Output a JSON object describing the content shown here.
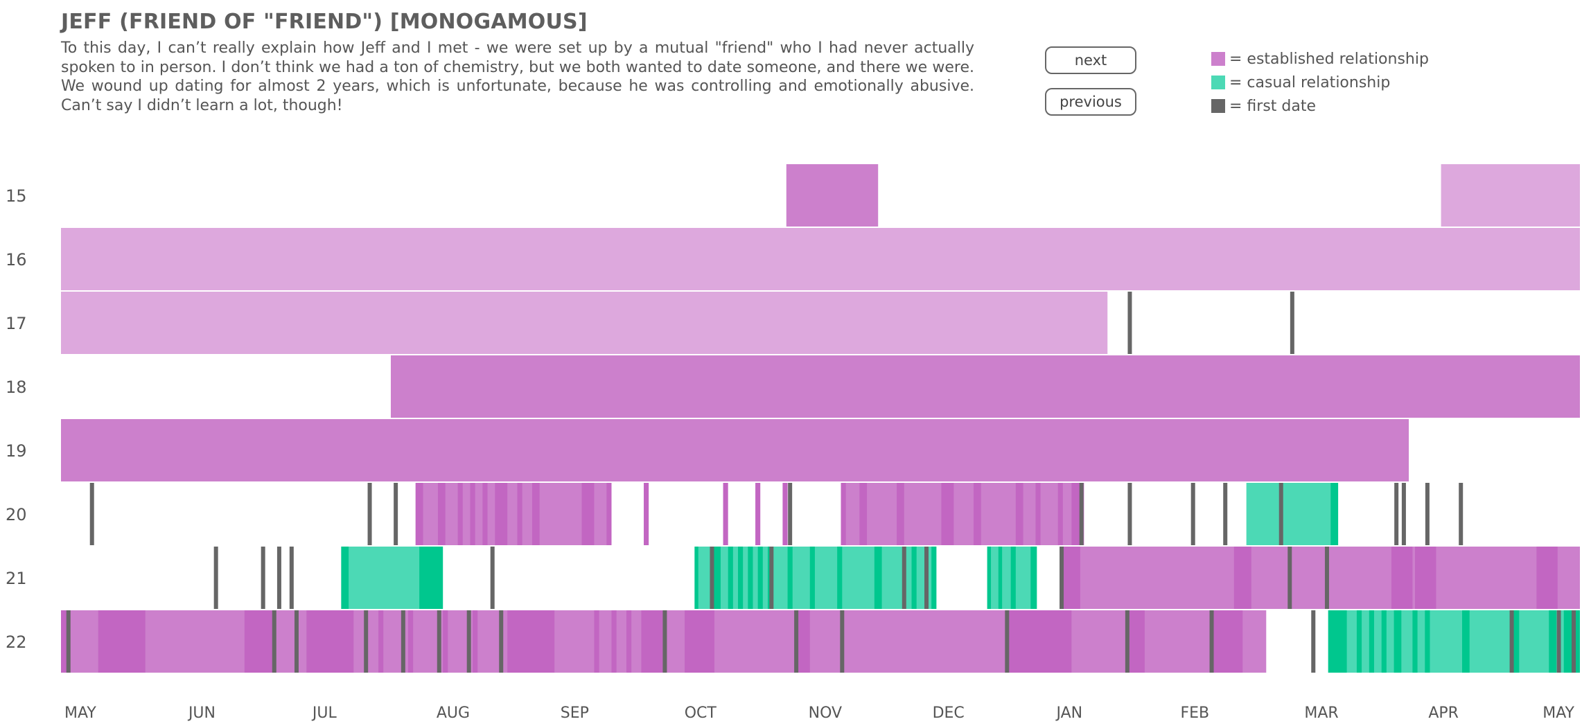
{
  "header": {
    "title": "JEFF (FRIEND OF \"FRIEND\") [MONOGAMOUS]",
    "description": "To this day, I can’t really explain how Jeff and I met - we were set up by a mutual \"friend\" who I had never actually spoken to in person. I don’t think we had a ton of chemistry, but we both wanted to date someone, and there we were. We wound up dating for almost 2 years, which is unfortunate, because he was controlling and emotionally abusive. Can’t say I didn’t learn a lot, though!"
  },
  "buttons": {
    "next_label": "next",
    "previous_label": "previous"
  },
  "legend": [
    {
      "label": "= established relationship",
      "color": "#cc80cc"
    },
    {
      "label": "= casual relationship",
      "color": "#4cd9b5"
    },
    {
      "label": "= first date",
      "color": "#666666"
    }
  ],
  "colors": {
    "established": "#cc80cc",
    "established_dark": "#c266c2",
    "established_light": "#dda8dd",
    "casual": "#4cd9b5",
    "casual_dark": "#00c78e",
    "first_date": "#666666"
  },
  "chart_data": {
    "type": "timeline",
    "title": "JEFF (FRIEND OF \"FRIEND\") [MONOGAMOUS]",
    "xlabel": "",
    "ylabel": "",
    "x_unit": "months since start of May",
    "x_range": [
      0,
      12.25
    ],
    "x_ticks": [
      "MAY",
      "JUN",
      "JUL",
      "AUG",
      "SEP",
      "OCT",
      "NOV",
      "DEC",
      "JAN",
      "FEB",
      "MAR",
      "APR",
      "MAY"
    ],
    "rows": [
      {
        "label": "15",
        "segments": [
          {
            "start": 5.85,
            "end": 6.59,
            "kind": "established"
          },
          {
            "start": 11.13,
            "end": 12.25,
            "kind": "established_light"
          }
        ],
        "first_dates": []
      },
      {
        "label": "16",
        "segments": [
          {
            "start": 0,
            "end": 12.25,
            "kind": "established_light"
          }
        ],
        "first_dates": []
      },
      {
        "label": "17",
        "segments": [
          {
            "start": 0,
            "end": 8.44,
            "kind": "established_light"
          }
        ],
        "first_dates": [
          8.62,
          9.93
        ]
      },
      {
        "label": "18",
        "segments": [
          {
            "start": 2.66,
            "end": 12.25,
            "kind": "established"
          }
        ],
        "first_dates": []
      },
      {
        "label": "19",
        "segments": [
          {
            "start": 0,
            "end": 10.87,
            "kind": "established"
          }
        ],
        "first_dates": []
      },
      {
        "label": "20",
        "segments": [
          {
            "start": 2.86,
            "end": 4.44,
            "kind": "established"
          },
          {
            "start": 2.86,
            "end": 2.92,
            "kind": "established_dark"
          },
          {
            "start": 3.04,
            "end": 3.1,
            "kind": "established_dark"
          },
          {
            "start": 3.2,
            "end": 3.24,
            "kind": "established_dark"
          },
          {
            "start": 3.3,
            "end": 3.34,
            "kind": "established_dark"
          },
          {
            "start": 3.4,
            "end": 3.44,
            "kind": "established_dark"
          },
          {
            "start": 3.5,
            "end": 3.6,
            "kind": "established_dark"
          },
          {
            "start": 3.68,
            "end": 3.72,
            "kind": "established_dark"
          },
          {
            "start": 3.8,
            "end": 3.86,
            "kind": "established_dark"
          },
          {
            "start": 4.2,
            "end": 4.3,
            "kind": "established_dark"
          },
          {
            "start": 4.4,
            "end": 4.44,
            "kind": "established_dark"
          },
          {
            "start": 4.7,
            "end": 4.74,
            "kind": "established_dark"
          },
          {
            "start": 5.34,
            "end": 5.38,
            "kind": "established_dark"
          },
          {
            "start": 5.6,
            "end": 5.64,
            "kind": "established_dark"
          },
          {
            "start": 5.82,
            "end": 5.86,
            "kind": "established_dark"
          },
          {
            "start": 6.29,
            "end": 8.25,
            "kind": "established"
          },
          {
            "start": 6.29,
            "end": 6.33,
            "kind": "established_dark"
          },
          {
            "start": 6.44,
            "end": 6.5,
            "kind": "established_dark"
          },
          {
            "start": 6.74,
            "end": 6.8,
            "kind": "established_dark"
          },
          {
            "start": 7.1,
            "end": 7.2,
            "kind": "established_dark"
          },
          {
            "start": 7.36,
            "end": 7.42,
            "kind": "established_dark"
          },
          {
            "start": 7.7,
            "end": 7.76,
            "kind": "established_dark"
          },
          {
            "start": 7.86,
            "end": 7.9,
            "kind": "established_dark"
          },
          {
            "start": 8.04,
            "end": 8.08,
            "kind": "established_dark"
          },
          {
            "start": 8.15,
            "end": 8.25,
            "kind": "established_dark"
          },
          {
            "start": 9.56,
            "end": 10.3,
            "kind": "casual"
          },
          {
            "start": 10.24,
            "end": 10.3,
            "kind": "casual_dark"
          }
        ],
        "first_dates": [
          0.25,
          2.49,
          2.7,
          5.88,
          8.23,
          8.62,
          9.13,
          9.39,
          9.84,
          10.77,
          10.83,
          11.02,
          11.29
        ]
      },
      {
        "label": "21",
        "segments": [
          {
            "start": 2.26,
            "end": 3.08,
            "kind": "casual"
          },
          {
            "start": 2.26,
            "end": 2.32,
            "kind": "casual_dark"
          },
          {
            "start": 2.89,
            "end": 3.08,
            "kind": "casual_dark"
          },
          {
            "start": 5.11,
            "end": 7.06,
            "kind": "casual"
          },
          {
            "start": 5.11,
            "end": 5.14,
            "kind": "casual_dark"
          },
          {
            "start": 5.26,
            "end": 5.32,
            "kind": "casual_dark"
          },
          {
            "start": 5.38,
            "end": 5.42,
            "kind": "casual_dark"
          },
          {
            "start": 5.46,
            "end": 5.5,
            "kind": "casual_dark"
          },
          {
            "start": 5.54,
            "end": 5.58,
            "kind": "casual_dark"
          },
          {
            "start": 5.62,
            "end": 5.66,
            "kind": "casual_dark"
          },
          {
            "start": 5.7,
            "end": 5.74,
            "kind": "casual_dark"
          },
          {
            "start": 5.86,
            "end": 5.9,
            "kind": "casual_dark"
          },
          {
            "start": 6.04,
            "end": 6.08,
            "kind": "casual_dark"
          },
          {
            "start": 6.26,
            "end": 6.3,
            "kind": "casual_dark"
          },
          {
            "start": 6.56,
            "end": 6.62,
            "kind": "casual_dark"
          },
          {
            "start": 6.86,
            "end": 6.9,
            "kind": "casual_dark"
          },
          {
            "start": 7.02,
            "end": 7.06,
            "kind": "casual_dark"
          },
          {
            "start": 7.47,
            "end": 7.87,
            "kind": "casual"
          },
          {
            "start": 7.47,
            "end": 7.5,
            "kind": "casual_dark"
          },
          {
            "start": 7.56,
            "end": 7.59,
            "kind": "casual_dark"
          },
          {
            "start": 7.66,
            "end": 7.7,
            "kind": "casual_dark"
          },
          {
            "start": 7.82,
            "end": 7.87,
            "kind": "casual_dark"
          },
          {
            "start": 8.08,
            "end": 12.25,
            "kind": "established"
          },
          {
            "start": 8.08,
            "end": 8.22,
            "kind": "established_dark"
          },
          {
            "start": 9.46,
            "end": 9.6,
            "kind": "established_dark"
          },
          {
            "start": 10.73,
            "end": 10.9,
            "kind": "established_dark"
          },
          {
            "start": 10.92,
            "end": 11.09,
            "kind": "established_dark"
          },
          {
            "start": 11.9,
            "end": 12.07,
            "kind": "established_dark"
          }
        ],
        "first_dates": [
          1.25,
          1.63,
          1.76,
          1.86,
          3.48,
          5.25,
          5.73,
          6.8,
          6.98,
          8.07,
          9.91,
          10.21
        ]
      },
      {
        "label": "22",
        "segments": [
          {
            "start": 0,
            "end": 9.72,
            "kind": "established"
          },
          {
            "start": 0,
            "end": 0.07,
            "kind": "established_dark"
          },
          {
            "start": 0.3,
            "end": 0.68,
            "kind": "established_dark"
          },
          {
            "start": 1.48,
            "end": 1.72,
            "kind": "established_dark"
          },
          {
            "start": 1.98,
            "end": 2.36,
            "kind": "established_dark"
          },
          {
            "start": 2.56,
            "end": 2.6,
            "kind": "established_dark"
          },
          {
            "start": 2.8,
            "end": 2.84,
            "kind": "established_dark"
          },
          {
            "start": 3.08,
            "end": 3.12,
            "kind": "established_dark"
          },
          {
            "start": 3.32,
            "end": 3.36,
            "kind": "established_dark"
          },
          {
            "start": 3.6,
            "end": 3.98,
            "kind": "established_dark"
          },
          {
            "start": 4.3,
            "end": 4.34,
            "kind": "established_dark"
          },
          {
            "start": 4.44,
            "end": 4.48,
            "kind": "established_dark"
          },
          {
            "start": 4.56,
            "end": 4.6,
            "kind": "established_dark"
          },
          {
            "start": 4.68,
            "end": 4.86,
            "kind": "established_dark"
          },
          {
            "start": 5.03,
            "end": 5.27,
            "kind": "established_dark"
          },
          {
            "start": 5.92,
            "end": 6.04,
            "kind": "established_dark"
          },
          {
            "start": 7.63,
            "end": 8.15,
            "kind": "established_dark"
          },
          {
            "start": 8.6,
            "end": 8.74,
            "kind": "established_dark"
          },
          {
            "start": 9.29,
            "end": 9.53,
            "kind": "established_dark"
          },
          {
            "start": 10.22,
            "end": 12.25,
            "kind": "casual"
          },
          {
            "start": 10.22,
            "end": 10.37,
            "kind": "casual_dark"
          },
          {
            "start": 10.45,
            "end": 10.49,
            "kind": "casual_dark"
          },
          {
            "start": 10.55,
            "end": 10.59,
            "kind": "casual_dark"
          },
          {
            "start": 10.65,
            "end": 10.69,
            "kind": "casual_dark"
          },
          {
            "start": 10.75,
            "end": 10.81,
            "kind": "casual_dark"
          },
          {
            "start": 10.9,
            "end": 10.94,
            "kind": "casual_dark"
          },
          {
            "start": 11.0,
            "end": 11.04,
            "kind": "casual_dark"
          },
          {
            "start": 11.3,
            "end": 11.36,
            "kind": "casual_dark"
          },
          {
            "start": 11.7,
            "end": 11.76,
            "kind": "casual_dark"
          },
          {
            "start": 12.0,
            "end": 12.06,
            "kind": "casual_dark"
          },
          {
            "start": 12.12,
            "end": 12.25,
            "kind": "casual_dark"
          }
        ],
        "first_dates": [
          0.06,
          1.72,
          1.9,
          2.46,
          2.76,
          3.05,
          3.29,
          3.55,
          4.87,
          5.93,
          6.3,
          7.63,
          8.6,
          9.28,
          10.1,
          11.7,
          12.08,
          12.2
        ]
      }
    ]
  }
}
